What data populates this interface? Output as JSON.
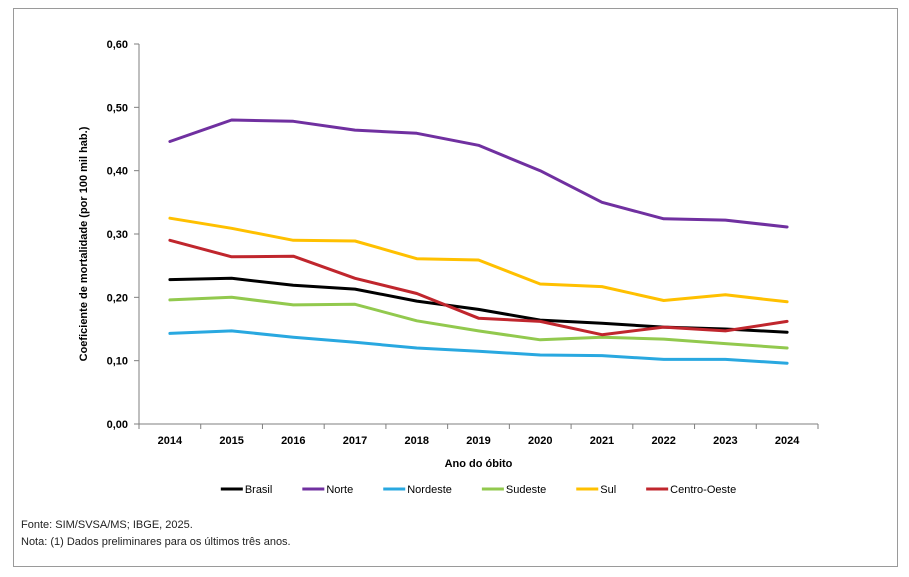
{
  "chart_data": {
    "type": "line",
    "title": "",
    "xlabel": "Ano do óbito",
    "ylabel": "Coeficiente de mortalidade (por 100 mil hab.)",
    "ylim": [
      0,
      0.6
    ],
    "yticks": [
      0,
      0.1,
      0.2,
      0.3,
      0.4,
      0.5,
      0.6
    ],
    "ytick_labels": [
      "0,00",
      "0,10",
      "0,20",
      "0,30",
      "0,40",
      "0,50",
      "0,60"
    ],
    "categories": [
      "2014",
      "2015",
      "2016",
      "2017",
      "2018",
      "2019",
      "2020",
      "2021",
      "2022",
      "2023",
      "2024"
    ],
    "grid": false,
    "legend_position": "bottom",
    "series": [
      {
        "name": "Brasil",
        "color": "#000000",
        "values": [
          0.228,
          0.23,
          0.219,
          0.213,
          0.194,
          0.181,
          0.164,
          0.159,
          0.153,
          0.15,
          0.145
        ]
      },
      {
        "name": "Norte",
        "color": "#7030A0",
        "values": [
          0.446,
          0.48,
          0.478,
          0.464,
          0.459,
          0.44,
          0.4,
          0.35,
          0.324,
          0.322,
          0.311
        ]
      },
      {
        "name": "Nordeste",
        "color": "#29A8E0",
        "values": [
          0.143,
          0.147,
          0.137,
          0.129,
          0.12,
          0.115,
          0.109,
          0.108,
          0.102,
          0.102,
          0.096
        ]
      },
      {
        "name": "Sudeste",
        "color": "#92C94E",
        "values": [
          0.196,
          0.2,
          0.188,
          0.189,
          0.163,
          0.147,
          0.133,
          0.137,
          0.134,
          0.127,
          0.12
        ]
      },
      {
        "name": "Sul",
        "color": "#FFC000",
        "values": [
          0.325,
          0.309,
          0.29,
          0.289,
          0.261,
          0.259,
          0.221,
          0.217,
          0.195,
          0.204,
          0.193
        ]
      },
      {
        "name": "Centro-Oeste",
        "color": "#C0262D",
        "values": [
          0.29,
          0.264,
          0.265,
          0.23,
          0.206,
          0.167,
          0.162,
          0.141,
          0.153,
          0.147,
          0.162
        ]
      }
    ]
  },
  "notes": {
    "source": "Fonte: SIM/SVSA/MS; IBGE, 2025.",
    "note": "Nota: (1) Dados preliminares para os últimos três anos."
  }
}
